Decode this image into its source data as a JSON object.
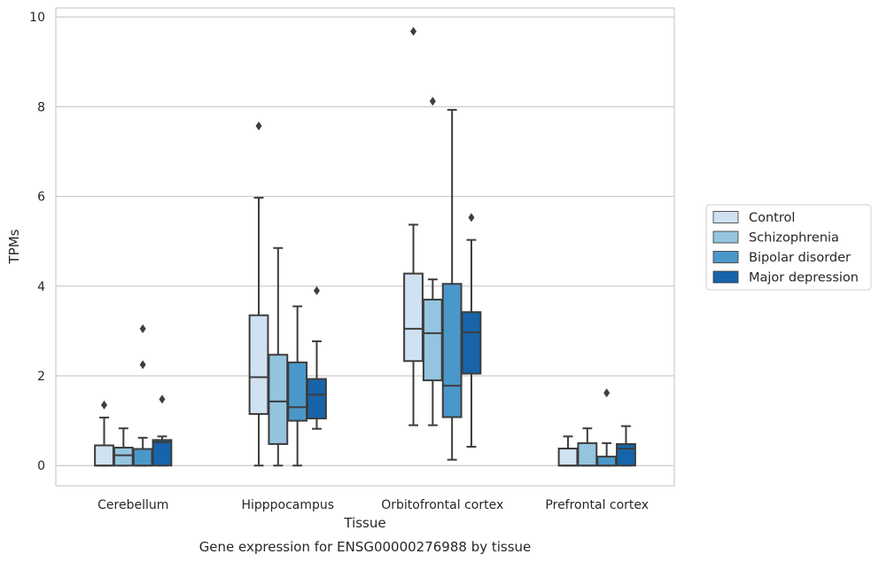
{
  "chart_data": {
    "type": "box",
    "xlabel": "Tissue",
    "ylabel": "TPMs",
    "caption": "Gene expression for ENSG00000276988 by tissue",
    "ylim": [
      -0.45,
      10.2
    ],
    "yticks": [
      0,
      2,
      4,
      6,
      8,
      10
    ],
    "grid": "horizontal",
    "legend_position": "right",
    "categories": [
      "Cerebellum",
      "Hipppocampus",
      "Orbitofrontal cortex",
      "Prefrontal cortex"
    ],
    "series": [
      {
        "name": "Control",
        "color": "#d0e1f2",
        "boxes": [
          {
            "whislo": 0,
            "q1": 0,
            "med": 0,
            "q3": 0.45,
            "whishi": 1.07,
            "fliers": [
              1.35
            ]
          },
          {
            "whislo": 0,
            "q1": 1.15,
            "med": 1.97,
            "q3": 3.35,
            "whishi": 5.97,
            "fliers": [
              7.57
            ]
          },
          {
            "whislo": 0.9,
            "q1": 2.33,
            "med": 3.05,
            "q3": 4.28,
            "whishi": 5.37,
            "fliers": [
              9.68
            ]
          },
          {
            "whislo": 0,
            "q1": 0,
            "med": 0,
            "q3": 0.38,
            "whishi": 0.65,
            "fliers": []
          }
        ]
      },
      {
        "name": "Schizophrenia",
        "color": "#94c4df",
        "boxes": [
          {
            "whislo": 0,
            "q1": 0,
            "med": 0.23,
            "q3": 0.4,
            "whishi": 0.83,
            "fliers": []
          },
          {
            "whislo": 0,
            "q1": 0.48,
            "med": 1.43,
            "q3": 2.47,
            "whishi": 4.85,
            "fliers": []
          },
          {
            "whislo": 0.9,
            "q1": 1.9,
            "med": 2.95,
            "q3": 3.7,
            "whishi": 4.15,
            "fliers": [
              8.12
            ]
          },
          {
            "whislo": 0,
            "q1": 0,
            "med": 0,
            "q3": 0.5,
            "whishi": 0.83,
            "fliers": []
          }
        ]
      },
      {
        "name": "Bipolar disorder",
        "color": "#4a98c9",
        "boxes": [
          {
            "whislo": 0,
            "q1": 0,
            "med": 0,
            "q3": 0.37,
            "whishi": 0.62,
            "fliers": [
              2.25,
              3.05
            ]
          },
          {
            "whislo": 0,
            "q1": 1.0,
            "med": 1.3,
            "q3": 2.3,
            "whishi": 3.55,
            "fliers": []
          },
          {
            "whislo": 0.13,
            "q1": 1.08,
            "med": 1.78,
            "q3": 4.05,
            "whishi": 7.93,
            "fliers": []
          },
          {
            "whislo": 0,
            "q1": 0,
            "med": 0,
            "q3": 0.2,
            "whishi": 0.5,
            "fliers": [
              1.62
            ]
          }
        ]
      },
      {
        "name": "Major depression",
        "color": "#1764ab",
        "boxes": [
          {
            "whislo": 0,
            "q1": 0,
            "med": 0.52,
            "q3": 0.57,
            "whishi": 0.65,
            "fliers": [
              1.48
            ]
          },
          {
            "whislo": 0.82,
            "q1": 1.05,
            "med": 1.58,
            "q3": 1.93,
            "whishi": 2.77,
            "fliers": [
              3.9
            ]
          },
          {
            "whislo": 0.42,
            "q1": 2.05,
            "med": 2.97,
            "q3": 3.42,
            "whishi": 5.03,
            "fliers": [
              5.53
            ]
          },
          {
            "whislo": 0,
            "q1": 0,
            "med": 0.38,
            "q3": 0.48,
            "whishi": 0.88,
            "fliers": []
          }
        ]
      }
    ]
  }
}
